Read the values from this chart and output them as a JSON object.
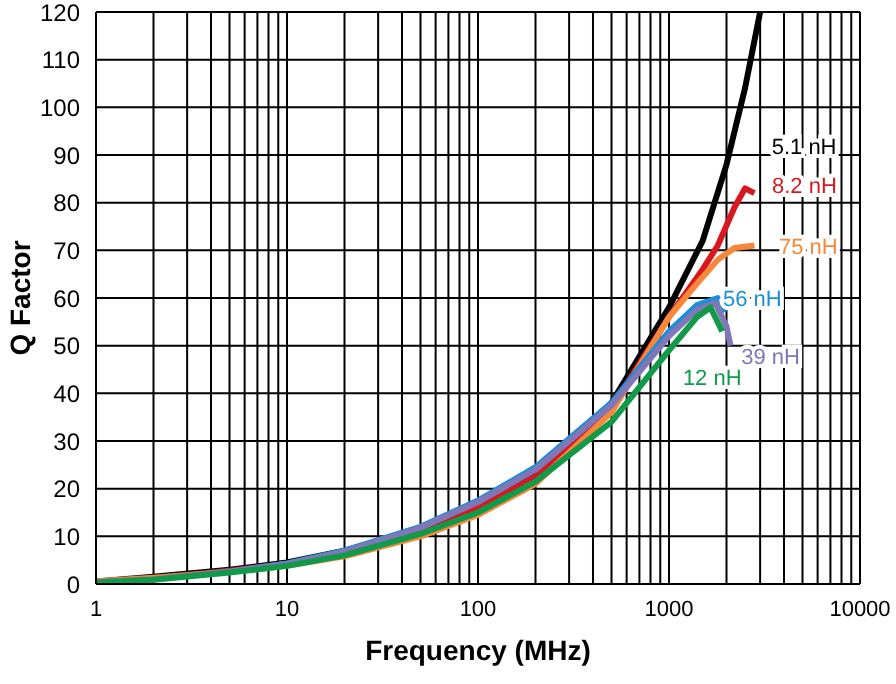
{
  "chart_data": {
    "type": "line",
    "xlabel": "Frequency (MHz)",
    "ylabel": "Q Factor",
    "log": "x",
    "grid": true,
    "legend": false,
    "marker": "none",
    "line_style": "solid",
    "xlim": [
      1,
      10000
    ],
    "xticks": [
      1,
      {
        "value": 2,
        "label": null
      },
      {
        "value": 3,
        "label": null
      },
      {
        "value": 4,
        "label": null
      },
      {
        "value": 5,
        "label": null
      },
      {
        "value": 6,
        "label": null
      },
      {
        "value": 7,
        "label": null
      },
      {
        "value": 8,
        "label": null
      },
      {
        "value": 9,
        "label": null
      },
      10,
      {
        "value": 20,
        "label": null
      },
      {
        "value": 30,
        "label": null
      },
      {
        "value": 40,
        "label": null
      },
      {
        "value": 50,
        "label": null
      },
      {
        "value": 60,
        "label": null
      },
      {
        "value": 70,
        "label": null
      },
      {
        "value": 80,
        "label": null
      },
      {
        "value": 90,
        "label": null
      },
      100,
      {
        "value": 200,
        "label": null
      },
      {
        "value": 300,
        "label": null
      },
      {
        "value": 400,
        "label": null
      },
      {
        "value": 500,
        "label": null
      },
      {
        "value": 600,
        "label": null
      },
      {
        "value": 700,
        "label": null
      },
      {
        "value": 800,
        "label": null
      },
      {
        "value": 900,
        "label": null
      },
      1000,
      {
        "value": 2000,
        "label": null
      },
      {
        "value": 3000,
        "label": null
      },
      {
        "value": 4000,
        "label": null
      },
      {
        "value": 5000,
        "label": null
      },
      {
        "value": 6000,
        "label": null
      },
      {
        "value": 7000,
        "label": null
      },
      {
        "value": 8000,
        "label": null
      },
      {
        "value": 9000,
        "label": null
      },
      10000
    ],
    "ylim": [
      0,
      120
    ],
    "yticks": [
      0,
      10,
      20,
      30,
      40,
      50,
      60,
      70,
      80,
      90,
      100,
      110,
      120
    ],
    "series": [
      {
        "name": "5.1 nH",
        "color": "#000000",
        "x": [
          1,
          2,
          5,
          10,
          20,
          50,
          100,
          200,
          500,
          1000,
          1500,
          2000,
          2500,
          3000
        ],
        "values": [
          0.5,
          1.5,
          3,
          4.5,
          7,
          11.5,
          16.5,
          23,
          38,
          58,
          72,
          88,
          104,
          120
        ]
      },
      {
        "name": "8.2 nH",
        "color": "#d7191f",
        "x": [
          1,
          2,
          5,
          10,
          20,
          50,
          100,
          200,
          500,
          1000,
          1500,
          1800,
          2200,
          2500,
          2800
        ],
        "values": [
          0.4,
          1.2,
          2.8,
          4.2,
          6.5,
          11,
          16,
          22.5,
          37,
          56,
          66,
          71,
          79,
          83,
          82
        ]
      },
      {
        "name": "75 nH",
        "color": "#f7883a",
        "x": [
          1,
          2,
          5,
          10,
          20,
          50,
          100,
          200,
          500,
          1000,
          1400,
          1800,
          2200,
          2800
        ],
        "values": [
          0.6,
          1.3,
          2.5,
          3.8,
          5.8,
          10,
          14.5,
          21,
          36,
          56,
          63,
          68,
          70.5,
          71
        ]
      },
      {
        "name": "56 nH",
        "color": "#1a8fd8",
        "x": [
          5,
          10,
          20,
          50,
          100,
          200,
          500,
          1000,
          1400,
          1800,
          1950
        ],
        "values": [
          2.6,
          4.3,
          7,
          12,
          17.5,
          24.5,
          38,
          53,
          58.5,
          60,
          57
        ]
      },
      {
        "name": "39 nH",
        "color": "#7f77b8",
        "x": [
          1,
          2,
          5,
          10,
          20,
          50,
          100,
          200,
          500,
          1000,
          1400,
          1750,
          2000,
          2100
        ],
        "values": [
          0.4,
          1,
          2.6,
          4.2,
          6.8,
          11.8,
          17.2,
          24,
          37.5,
          52,
          57.5,
          59,
          54,
          50
        ]
      },
      {
        "name": "12 nH",
        "color": "#109a4a",
        "x": [
          1,
          2,
          5,
          10,
          20,
          50,
          100,
          200,
          500,
          1000,
          1400,
          1650,
          1900
        ],
        "values": [
          0.3,
          0.9,
          2.4,
          3.8,
          6,
          10.5,
          15,
          21.5,
          34,
          49,
          56,
          58,
          53
        ]
      }
    ]
  }
}
